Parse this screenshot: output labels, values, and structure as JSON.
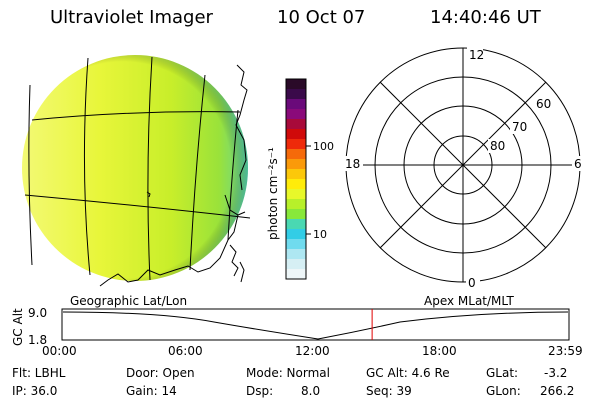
{
  "header": {
    "title": "Ultraviolet Imager",
    "date": "10 Oct 07",
    "time": "14:40:46 UT"
  },
  "colorbar": {
    "unit_label": "photon cm⁻²s⁻¹",
    "ticks": [
      "100",
      "10"
    ],
    "colors": [
      "#2a0a28",
      "#3a0a4a",
      "#6a0a7a",
      "#8a0a7a",
      "#a80a3a",
      "#d00a0a",
      "#ee2a0a",
      "#f56a0a",
      "#fa9a0a",
      "#fcc80a",
      "#ffec0a",
      "#e8f82a",
      "#b8f02a",
      "#88e83a",
      "#4ad8b2",
      "#32cde6",
      "#70dbee",
      "#aee7f2",
      "#d6eff4",
      "#eef6f8"
    ]
  },
  "image_panel": {
    "caption": "Geographic Lat/Lon"
  },
  "polar_plot": {
    "caption": "Apex MLat/MLT",
    "mlt_labels": [
      "12",
      "18",
      "6",
      "0"
    ],
    "lat_labels": [
      "60",
      "70",
      "80"
    ]
  },
  "altitude_plot": {
    "ylabel": "GC Alt",
    "yticks": [
      "9.0",
      "1.8"
    ],
    "xticks": [
      "00:00",
      "06:00",
      "12:00",
      "18:00",
      "23:59"
    ],
    "current_time_marker_hours": 14.68,
    "colors": {
      "marker": "#e00000"
    }
  },
  "status": {
    "flt": "Flt: LBHL",
    "ip": "IP: 36.0",
    "door": "Door: Open",
    "gain": "Gain: 14",
    "mode": "Mode: Normal",
    "dsp_label": "Dsp:",
    "dsp_value": "8.0",
    "gc_alt": "GC Alt: 4.6 Re",
    "seq": "Seq: 39",
    "glat_label": "GLat:",
    "glat_value": "-3.2",
    "glon_label": "GLon:",
    "glon_value": "266.2"
  }
}
